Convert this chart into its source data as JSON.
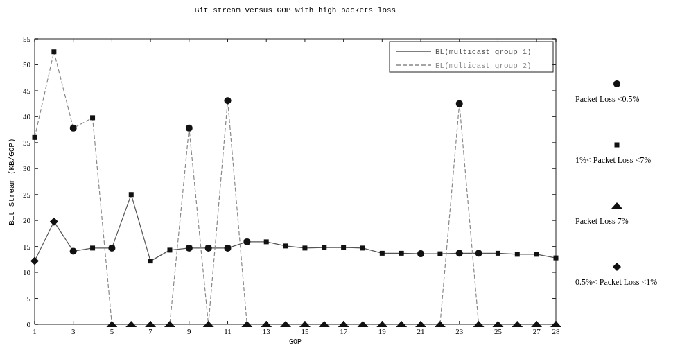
{
  "chart_data": {
    "type": "line",
    "title": "Bit stream versus GOP with high packets loss",
    "xlabel": "GOP",
    "ylabel": "Bit Stream (KB/GOP)",
    "x": [
      1,
      2,
      3,
      4,
      5,
      6,
      7,
      8,
      9,
      10,
      11,
      12,
      13,
      14,
      15,
      16,
      17,
      18,
      19,
      20,
      21,
      22,
      23,
      24,
      25,
      26,
      27,
      28
    ],
    "xlim": [
      1,
      28
    ],
    "xticks": [
      1,
      3,
      5,
      7,
      9,
      11,
      13,
      15,
      17,
      19,
      21,
      23,
      25,
      27,
      28
    ],
    "ylim": [
      0,
      55
    ],
    "yticks": [
      0,
      5,
      10,
      15,
      20,
      25,
      30,
      35,
      40,
      45,
      50,
      55
    ],
    "grid": false,
    "legend": "right",
    "series": [
      {
        "name": "BL(multicast group 1)",
        "color": "#555555",
        "line_style": "solid",
        "marker": "none",
        "values": [
          12.2,
          19.8,
          14.1,
          14.7,
          14.7,
          25,
          12.2,
          14.3,
          14.7,
          14.7,
          14.7,
          15.9,
          15.9,
          15.1,
          14.7,
          14.8,
          14.8,
          14.7,
          13.7,
          13.7,
          13.6,
          13.6,
          13.7,
          13.7,
          13.7,
          13.5,
          13.5,
          12.8
        ]
      },
      {
        "name": "EL(multicast group 2)",
        "color": "#888888",
        "line_style": "dashed",
        "marker": "none",
        "values": [
          36,
          52.5,
          37.8,
          39.8,
          0,
          0,
          0,
          0,
          37.8,
          0,
          43.1,
          0,
          0,
          0,
          0,
          0,
          0,
          0,
          0,
          0,
          0,
          0,
          42.5,
          0,
          0,
          0,
          0,
          0
        ]
      },
      {
        "name": "Packet Loss <0.5%",
        "type": "scatter",
        "color": "#111111",
        "marker": "circle",
        "x": [
          3,
          5,
          9,
          10,
          11,
          12,
          21,
          23,
          24,
          3,
          9,
          11,
          23
        ],
        "values": [
          14.1,
          14.7,
          14.7,
          14.7,
          14.7,
          15.9,
          13.6,
          13.7,
          13.7,
          37.8,
          37.8,
          43.1,
          42.5
        ]
      },
      {
        "name": "1%< Packet Loss <7%",
        "type": "scatter",
        "color": "#111111",
        "marker": "square",
        "x": [
          4,
          6,
          7,
          8,
          13,
          14,
          15,
          16,
          17,
          18,
          19,
          20,
          22,
          25,
          26,
          27,
          28,
          1,
          2,
          4
        ],
        "values": [
          14.7,
          25,
          12.2,
          14.3,
          15.9,
          15.1,
          14.7,
          14.8,
          14.8,
          14.7,
          13.7,
          13.7,
          13.6,
          13.7,
          13.5,
          13.5,
          12.8,
          36,
          52.5,
          39.8
        ]
      },
      {
        "name": "Packet Loss 7%",
        "type": "scatter",
        "color": "#111111",
        "marker": "triangle",
        "x": [
          5,
          6,
          7,
          8,
          10,
          12,
          13,
          14,
          15,
          16,
          17,
          18,
          19,
          20,
          21,
          22,
          24,
          25,
          26,
          27,
          28
        ],
        "values": [
          0,
          0,
          0,
          0,
          0,
          0,
          0,
          0,
          0,
          0,
          0,
          0,
          0,
          0,
          0,
          0,
          0,
          0,
          0,
          0,
          0
        ]
      },
      {
        "name": "0.5%< Packet Loss <1%",
        "type": "scatter",
        "color": "#111111",
        "marker": "diamond",
        "x": [
          1,
          2
        ],
        "values": [
          12.2,
          19.8
        ]
      }
    ]
  }
}
